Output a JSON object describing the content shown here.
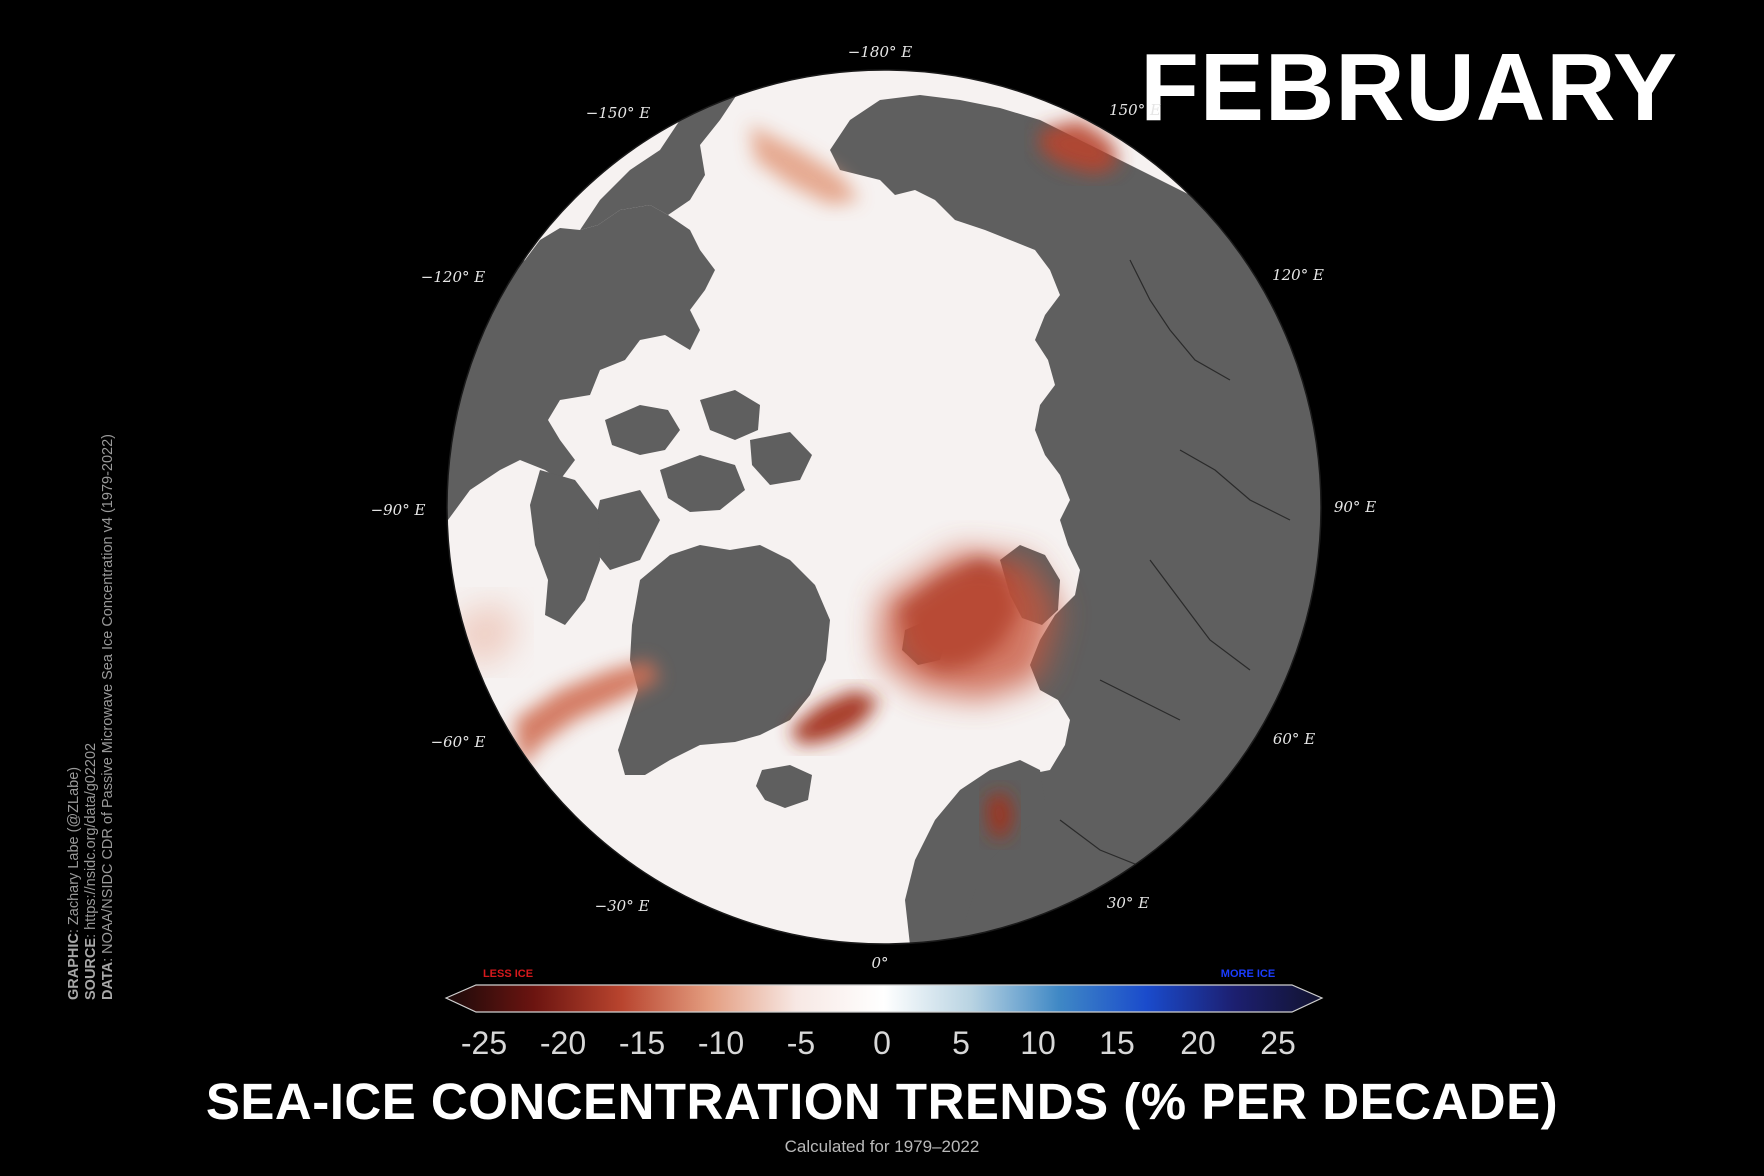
{
  "title": "FEBRUARY",
  "main_title": "SEA-ICE CONCENTRATION TRENDS (% PER DECADE)",
  "subtitle": "Calculated for 1979–2022",
  "colorbar": {
    "less_label": "LESS ICE",
    "more_label": "MORE ICE",
    "less_color": "#d7191c",
    "more_color": "#1a3cff",
    "ticks": [
      "-25",
      "-20",
      "-15",
      "-10",
      "-5",
      "0",
      "5",
      "10",
      "15",
      "20",
      "25"
    ],
    "range": [
      -25,
      25
    ],
    "colors": [
      "#1a0a0a",
      "#6b1410",
      "#b8442e",
      "#e39c7f",
      "#f7e8e4",
      "#ffffff",
      "#b8d3e2",
      "#3f88c5",
      "#1a4bcc",
      "#1c1f70",
      "#12132e"
    ]
  },
  "longitudes": {
    "north": "−180° E",
    "nnw": "−150° E",
    "nw": "−120° E",
    "w": "−90° E",
    "sw": "−60° E",
    "ssw": "−30° E",
    "south": "0°",
    "sse": "30° E",
    "se": "60° E",
    "e": "90° E",
    "ne": "120° E",
    "nne": "150° E"
  },
  "credits": {
    "graphic_key": "GRAPHIC",
    "graphic": ": Zachary Labe (@ZLabe)",
    "source_key": "SOURCE",
    "source": ": https://nsidc.org/data/g02202",
    "data_key": "DATA",
    "data": ": NOAA/NSIDC CDR of Passive Microwave Sea Ice Concentration v4 (1979-2022)"
  },
  "colors": {
    "background": "#000000",
    "land": "#5f5f5f",
    "ocean_neutral": "#f6f2f1",
    "strong_decline": "#7a1b14",
    "moderate_decline": "#c8573e",
    "weak_decline": "#ecc0b1"
  }
}
